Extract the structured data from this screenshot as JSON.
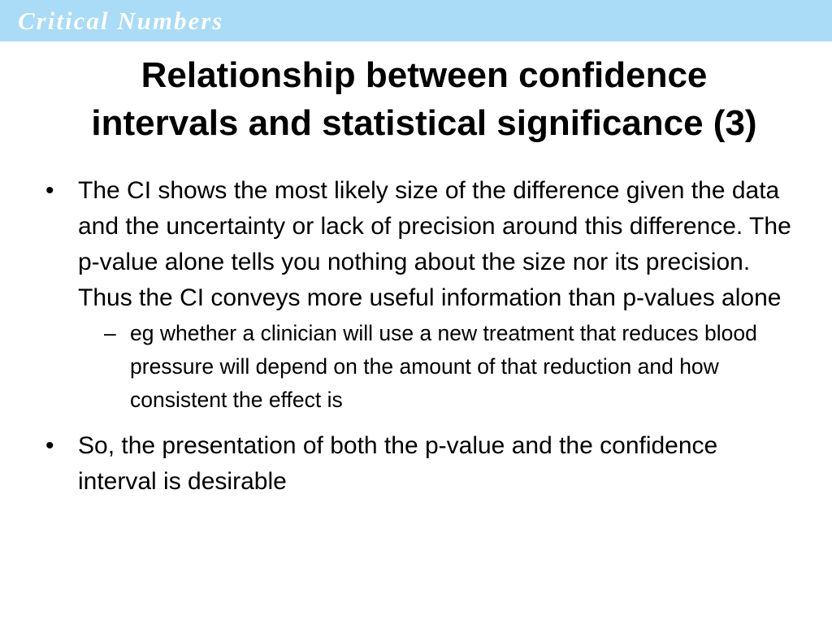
{
  "header": {
    "brand": "Critical Numbers"
  },
  "slide": {
    "title_lines": [
      "Relationship between confidence",
      "intervals and statistical significance (3)"
    ],
    "bullets": [
      {
        "text": "The CI shows the most likely size of the difference given the data and the uncertainty or lack of precision around this difference. The p-value alone tells you nothing about the size nor its precision. Thus the CI conveys more useful information than p-values alone",
        "sub_bullets": [
          "eg whether a clinician will use a new treatment that reduces blood pressure will depend on the amount of that reduction and how consistent the effect is"
        ]
      },
      {
        "text": "So, the presentation of both the p-value and the confidence interval is desirable",
        "sub_bullets": []
      }
    ]
  }
}
